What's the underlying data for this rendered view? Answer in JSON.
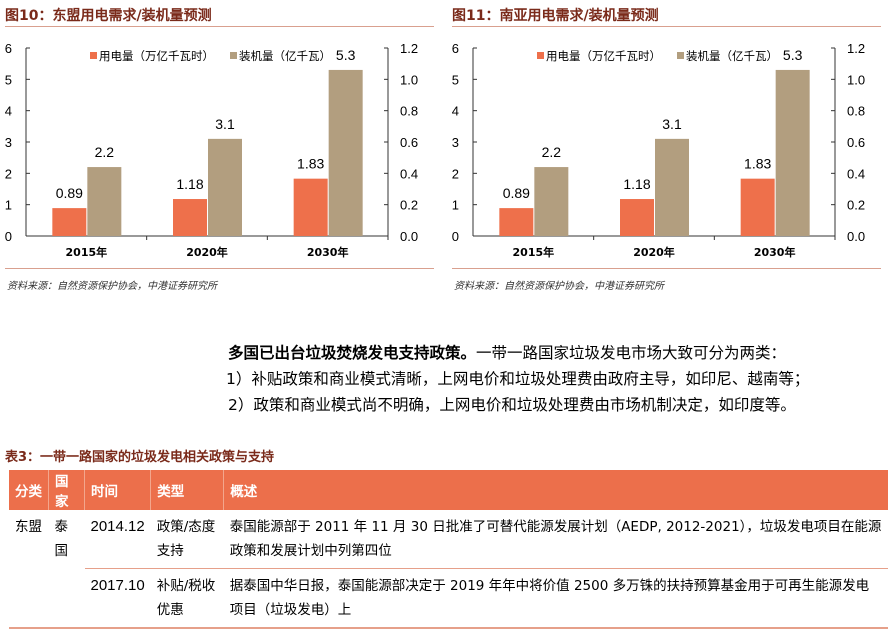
{
  "charts": [
    {
      "title": "图10：东盟用电需求/装机量预测",
      "source": "资料来源：自然资源保护协会，中港证券研究所"
    },
    {
      "title": "图11：南亚用电需求/装机量预测",
      "source": "资料来源：自然资源保护协会，中港证券研究所"
    }
  ],
  "chart_data": [
    {
      "type": "bar",
      "title": "东盟用电需求/装机量预测",
      "categories": [
        "2015年",
        "2020年",
        "2030年"
      ],
      "series": [
        {
          "name": "用电量（万亿千瓦时）",
          "values": [
            0.89,
            1.18,
            1.83
          ],
          "color": "#ee704b"
        },
        {
          "name": "装机量（亿千瓦）",
          "values": [
            2.2,
            3.1,
            5.3
          ],
          "color": "#b29e7f"
        }
      ],
      "labels": [
        [
          "0.89",
          "1.18",
          "1.83"
        ],
        [
          "2.2",
          "3.1",
          "5.3"
        ]
      ],
      "ylim": [
        0,
        6
      ],
      "yticks": [
        "0",
        "1",
        "2",
        "3",
        "4",
        "5",
        "6"
      ],
      "y2lim": [
        0,
        1.2
      ],
      "y2ticks": [
        "0.0",
        "0.2",
        "0.4",
        "0.6",
        "0.8",
        "1.0",
        "1.2"
      ],
      "legend": "top"
    },
    {
      "type": "bar",
      "title": "南亚用电需求/装机量预测",
      "categories": [
        "2015年",
        "2020年",
        "2030年"
      ],
      "series": [
        {
          "name": "用电量（万亿千瓦时）",
          "values": [
            0.89,
            1.18,
            1.83
          ],
          "color": "#ee704b"
        },
        {
          "name": "装机量（亿千瓦）",
          "values": [
            2.2,
            3.1,
            5.3
          ],
          "color": "#b29e7f"
        }
      ],
      "labels": [
        [
          "0.89",
          "1.18",
          "1.83"
        ],
        [
          "2.2",
          "3.1",
          "5.3"
        ]
      ],
      "ylim": [
        0,
        6
      ],
      "yticks": [
        "0",
        "1",
        "2",
        "3",
        "4",
        "5",
        "6"
      ],
      "y2lim": [
        0,
        1.2
      ],
      "y2ticks": [
        "0.0",
        "0.2",
        "0.4",
        "0.6",
        "0.8",
        "1.0",
        "1.2"
      ],
      "legend": "top"
    }
  ],
  "paragraph": {
    "lead": "多国已出台垃圾焚烧发电支持政策。",
    "text1": "一带一路国家垃圾发电市场大致可分为两类：",
    "line2": "1）补贴政策和商业模式清晰，上网电价和垃圾处理费由政府主导，如印尼、越南等；",
    "line3": "2）政策和商业模式尚不明确，上网电价和垃圾处理费由市场机制决定，如印度等。"
  },
  "table": {
    "title": "表3：一带一路国家的垃圾发电相关政策与支持",
    "headers": [
      "分类",
      "国家",
      "时间",
      "类型",
      "概述"
    ],
    "rows": [
      {
        "category": "东盟",
        "country": "泰国",
        "time": "2014.12",
        "type": "政策/态度支持",
        "desc": "泰国能源部于 2011 年 11 月 30 日批准了可替代能源发展计划（AEDP, 2012-2021），垃圾发电项目在能源政策和发展计划中列第四位"
      },
      {
        "time": "2017.10",
        "type": "补贴/税收优惠",
        "desc": "据泰国中华日报，泰国能源部决定于 2019 年年中将价值 2500 多万铢的扶持预算基金用于可再生能源发电项目（垃圾发电）上"
      }
    ]
  }
}
